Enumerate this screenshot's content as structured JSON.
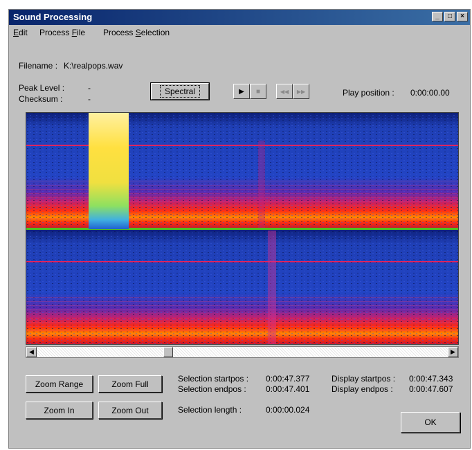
{
  "window": {
    "title": "Sound Processing"
  },
  "menu": {
    "edit": {
      "mnemonic": "E",
      "rest": "dit"
    },
    "process_file": {
      "pre": "Process ",
      "mnemonic": "F",
      "rest": "ile"
    },
    "process_selection": {
      "pre": "Process ",
      "mnemonic": "S",
      "rest": "election"
    }
  },
  "info": {
    "filename_label": "Filename :",
    "filename_value": "K:\\realpops.wav",
    "peak_label": "Peak Level :",
    "peak_value": "-",
    "checksum_label": "Checksum :",
    "checksum_value": "-",
    "play_position_label": "Play position :",
    "play_position_value": "0:00:00.00"
  },
  "toolbar": {
    "spectral_label": "Spectral",
    "play_glyph": "▶",
    "stop_glyph": "■",
    "rewind_glyph": "◀◀",
    "forward_glyph": "▶▶"
  },
  "buttons": {
    "zoom_range": "Zoom Range",
    "zoom_full": "Zoom Full",
    "zoom_in": "Zoom In",
    "zoom_out": "Zoom Out",
    "ok": "OK"
  },
  "selection": {
    "startpos_label": "Selection startpos :",
    "startpos_value": "0:00:47.377",
    "endpos_label": "Selection endpos :",
    "endpos_value": "0:00:47.401",
    "length_label": "Selection length :",
    "length_value": "0:00:00.024"
  },
  "display": {
    "startpos_label": "Display startpos :",
    "startpos_value": "0:00:47.343",
    "endpos_label": "Display endpos :",
    "endpos_value": "0:00:47.607"
  },
  "colors": {
    "title_bar": "#08246b",
    "spectrogram_background": "#1f3fb5",
    "spectrogram_hot": "#ff3a1a",
    "spectrogram_selection": "#ffe040"
  },
  "icons": {
    "minimize": "minimize-icon",
    "maximize": "maximize-icon",
    "close": "close-icon",
    "play": "play-icon",
    "stop": "stop-icon",
    "rewind": "rewind-icon",
    "forward": "fast-forward-icon",
    "scroll_left": "scroll-left-arrow-icon",
    "scroll_right": "scroll-right-arrow-icon"
  }
}
